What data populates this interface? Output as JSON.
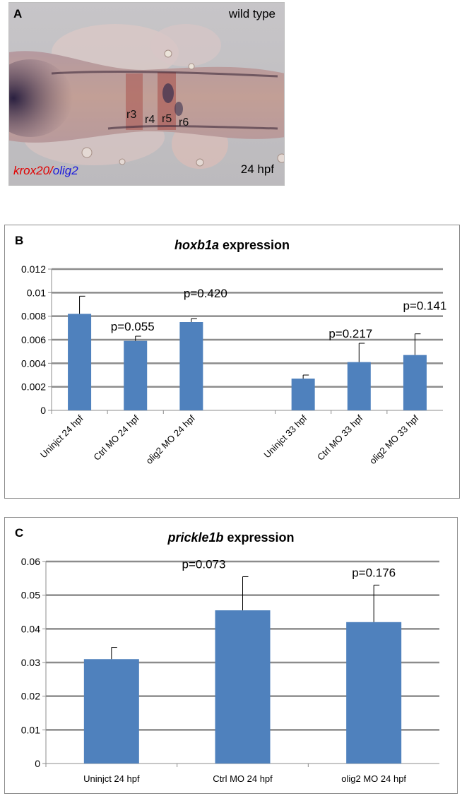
{
  "panel_a": {
    "letter": "A",
    "condition": "wild type",
    "stage": "24 hpf",
    "stain_red": "krox20",
    "stain_sep": "/",
    "stain_blue": "olig2",
    "rhombomeres": [
      "r3",
      "r4",
      "r5",
      "r6"
    ]
  },
  "chart_data": [
    {
      "type": "bar",
      "panel": "B",
      "title_gene": "hoxb1a",
      "title_suffix": " expression",
      "categories": [
        "Uninjct 24 hpf",
        "Ctrl MO 24 hpf",
        "olig2 MO 24 hpf",
        "Uninjct 33 hpf",
        "Ctrl MO 33 hpf",
        "olig2 MO 33 hpf"
      ],
      "values": [
        0.0082,
        0.0059,
        0.0075,
        0.0027,
        0.0041,
        0.0047
      ],
      "errors": [
        0.0015,
        0.0004,
        0.0003,
        0.0003,
        0.0016,
        0.0018
      ],
      "pvalues": [
        "",
        "p=0.055",
        "p=0.420",
        "",
        "p=0.217",
        "p=0.141"
      ],
      "ylim": [
        0,
        0.012
      ],
      "yticks": [
        "0",
        "0.002",
        "0.004",
        "0.006",
        "0.008",
        "0.01",
        "0.012"
      ],
      "grid": true,
      "bar_color": "#4f81bd"
    },
    {
      "type": "bar",
      "panel": "C",
      "title_gene": "prickle1b",
      "title_suffix": " expression",
      "categories": [
        "Uninjct 24  hpf",
        "Ctrl MO  24 hpf",
        "olig2 MO 24  hpf"
      ],
      "values": [
        0.031,
        0.0455,
        0.042
      ],
      "errors": [
        0.0035,
        0.01,
        0.011
      ],
      "pvalues": [
        "",
        "p=0.073",
        "p=0.176"
      ],
      "ylim": [
        0,
        0.06
      ],
      "yticks": [
        "0",
        "0.01",
        "0.02",
        "0.03",
        "0.04",
        "0.05",
        "0.06"
      ],
      "grid": true,
      "bar_color": "#4f81bd"
    }
  ]
}
